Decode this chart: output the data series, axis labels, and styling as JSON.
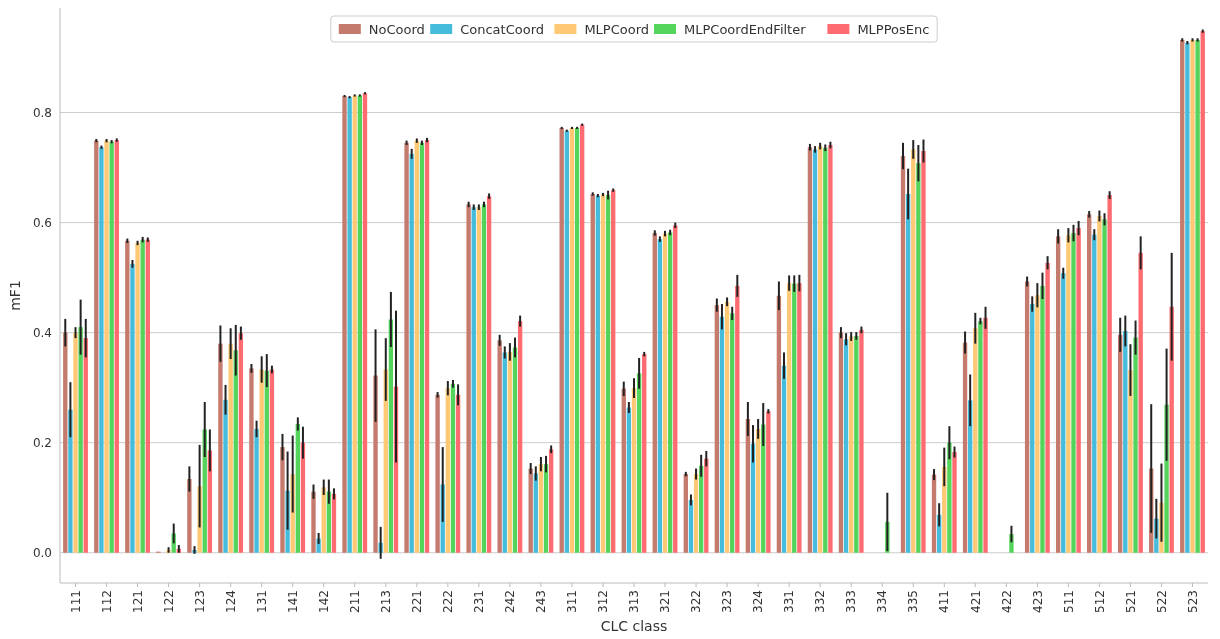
{
  "chart_data": {
    "type": "bar",
    "xlabel": "CLC class",
    "ylabel": "mF1",
    "categories": [
      "111",
      "112",
      "121",
      "122",
      "123",
      "124",
      "131",
      "141",
      "142",
      "211",
      "213",
      "221",
      "222",
      "231",
      "242",
      "243",
      "311",
      "312",
      "313",
      "321",
      "322",
      "323",
      "324",
      "331",
      "332",
      "333",
      "334",
      "335",
      "411",
      "421",
      "422",
      "423",
      "511",
      "512",
      "521",
      "522",
      "523"
    ],
    "series": [
      {
        "name": "NoCoord",
        "color": "#c47a6c",
        "values": [
          0.4,
          0.749,
          0.567,
          0.002,
          0.134,
          0.38,
          0.335,
          0.192,
          0.111,
          0.83,
          0.322,
          0.745,
          0.287,
          0.633,
          0.386,
          0.153,
          0.772,
          0.652,
          0.298,
          0.581,
          0.143,
          0.45,
          0.243,
          0.467,
          0.737,
          0.4,
          0,
          0.721,
          0.142,
          0.382,
          0,
          0.493,
          0.575,
          0.615,
          0.396,
          0.153,
          0.932
        ],
        "errors": [
          0.025,
          0.003,
          0.004,
          null,
          0.023,
          0.033,
          0.008,
          0.024,
          0.013,
          0.002,
          0.084,
          0.004,
          0.005,
          0.005,
          0.01,
          0.01,
          0.002,
          0.003,
          0.013,
          0.005,
          0.004,
          0.012,
          0.031,
          0.026,
          0.006,
          0.01,
          null,
          0.024,
          0.01,
          0.02,
          null,
          0.009,
          0.013,
          0.006,
          0.031,
          0.117,
          0.003
        ]
      },
      {
        "name": "ConcatCoord",
        "color": "#45bcdc",
        "values": [
          0.26,
          0.737,
          0.525,
          0,
          0.005,
          0.278,
          0.225,
          0.113,
          0.026,
          0.828,
          0.018,
          0.725,
          0.124,
          0.628,
          0.364,
          0.144,
          0.767,
          0.649,
          0.264,
          0.57,
          0.096,
          0.429,
          0.198,
          0.34,
          0.733,
          0.388,
          0,
          0.652,
          0.069,
          0.277,
          0,
          0.452,
          0.508,
          0.578,
          0.403,
          0.062,
          0.927
        ],
        "errors": [
          0.05,
          0.003,
          0.007,
          null,
          0.007,
          0.027,
          0.015,
          0.071,
          0.01,
          0.002,
          0.029,
          0.009,
          0.068,
          0.005,
          0.011,
          0.013,
          0.002,
          0.003,
          0.01,
          0.005,
          0.01,
          0.023,
          0.034,
          0.024,
          0.006,
          0.011,
          null,
          0.046,
          0.021,
          0.047,
          null,
          0.014,
          0.01,
          0.01,
          0.028,
          0.036,
          0.003
        ]
      },
      {
        "name": "MLPCoord",
        "color": "#ffc874",
        "values": [
          0.4,
          0.749,
          0.563,
          0.005,
          0.121,
          0.38,
          0.333,
          0.143,
          0.119,
          0.831,
          0.333,
          0.749,
          0.299,
          0.628,
          0.365,
          0.161,
          0.772,
          0.651,
          0.299,
          0.58,
          0.143,
          0.456,
          0.225,
          0.49,
          0.739,
          0.393,
          0,
          0.733,
          0.156,
          0.408,
          0,
          0.468,
          0.577,
          0.612,
          0.332,
          0.091,
          0.932
        ],
        "errors": [
          0.01,
          0.003,
          0.004,
          0.005,
          0.075,
          0.028,
          0.024,
          0.07,
          0.014,
          0.002,
          0.057,
          0.004,
          0.013,
          0.005,
          0.016,
          0.013,
          0.002,
          0.003,
          0.018,
          0.005,
          0.01,
          0.008,
          0.018,
          0.014,
          0.006,
          0.008,
          null,
          0.017,
          0.035,
          0.028,
          null,
          0.022,
          0.013,
          0.01,
          0.047,
          0.071,
          0.003
        ]
      },
      {
        "name": "MLPCoordEndFilter",
        "color": "#55d45c",
        "values": [
          0.41,
          0.747,
          0.569,
          0.035,
          0.224,
          0.368,
          0.331,
          0.234,
          0.111,
          0.831,
          0.424,
          0.745,
          0.307,
          0.633,
          0.373,
          0.161,
          0.772,
          0.65,
          0.326,
          0.582,
          0.158,
          0.435,
          0.233,
          0.489,
          0.736,
          0.394,
          0.056,
          0.708,
          0.2,
          0.421,
          0.034,
          0.485,
          0.581,
          0.606,
          0.391,
          0.269,
          0.932
        ],
        "errors": [
          0.05,
          0.003,
          0.005,
          0.018,
          0.05,
          0.046,
          0.03,
          0.012,
          0.022,
          0.002,
          0.05,
          0.004,
          0.007,
          0.005,
          0.018,
          0.015,
          0.002,
          0.008,
          0.028,
          0.005,
          0.02,
          0.012,
          0.039,
          0.015,
          0.006,
          0.007,
          0.053,
          0.033,
          0.03,
          0.006,
          0.015,
          0.024,
          0.015,
          0.011,
          0.031,
          0.102,
          0.003
        ]
      },
      {
        "name": "MLPPosEnc",
        "color": "#fe6b70",
        "values": [
          0.39,
          0.75,
          0.569,
          0.007,
          0.186,
          0.399,
          0.333,
          0.2,
          0.107,
          0.835,
          0.302,
          0.75,
          0.287,
          0.648,
          0.421,
          0.188,
          0.778,
          0.659,
          0.361,
          0.595,
          0.171,
          0.485,
          0.257,
          0.49,
          0.741,
          0.405,
          0,
          0.73,
          0.183,
          0.427,
          0,
          0.527,
          0.59,
          0.65,
          0.545,
          0.447,
          0.948
        ],
        "errors": [
          0.035,
          0.003,
          0.004,
          0.007,
          0.038,
          0.012,
          0.007,
          0.029,
          0.01,
          0.002,
          0.138,
          0.004,
          0.019,
          0.005,
          0.01,
          0.007,
          0.002,
          0.003,
          0.004,
          0.005,
          0.014,
          0.02,
          0.004,
          0.015,
          0.006,
          0.006,
          null,
          0.021,
          0.01,
          0.02,
          null,
          0.012,
          0.013,
          0.007,
          0.03,
          0.098,
          0.003
        ]
      }
    ],
    "ylim": [
      -0.055,
      0.99
    ],
    "yticks": [
      {
        "value": 0,
        "label": "0.0"
      },
      {
        "value": 0.2,
        "label": "0.2"
      },
      {
        "value": 0.4,
        "label": "0.4"
      },
      {
        "value": 0.6,
        "label": "0.6"
      },
      {
        "value": 0.8,
        "label": "0.8"
      }
    ],
    "grid": "y",
    "legend": "top"
  }
}
